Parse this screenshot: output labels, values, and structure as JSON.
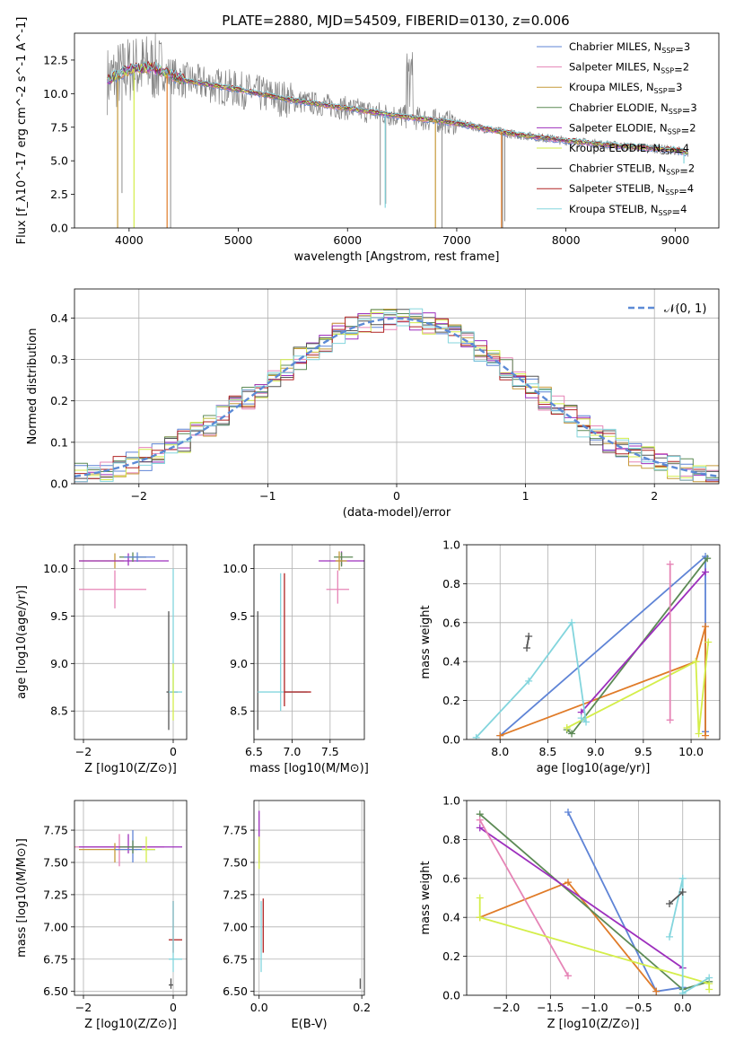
{
  "figure_title": "PLATE=2880, MJD=54509, FIBERID=0130, z=0.006",
  "colors": {
    "Chabrier MILES": "#5f84d6",
    "Salpeter MILES": "#e684b6",
    "Kroupa MILES": "#c69a3a",
    "Chabrier ELODIE": "#5c8a55",
    "Salpeter ELODIE": "#9d2fbd",
    "Kroupa ELODIE": "#d4ee4a",
    "Chabrier STELIB": "#555555",
    "Salpeter STELIB": "#b02323",
    "Kroupa STELIB": "#83d5dd",
    "data": "#808080",
    "normal_curve": "#5c8ad6",
    "orange_series": "#e07b28"
  },
  "chart_data": [
    {
      "id": "spectrum",
      "type": "line",
      "title": "PLATE=2880, MJD=54509, FIBERID=0130, z=0.006",
      "xlabel": "wavelength [Angstrom, rest frame]",
      "ylabel": "Flux [f_λ10^-17 erg cm^-2 s^-1 A^-1]",
      "xlim": [
        3500,
        9400
      ],
      "ylim": [
        0,
        14.5
      ],
      "xticks": [
        "4000",
        "5000",
        "6000",
        "7000",
        "8000",
        "9000"
      ],
      "yticks": [
        "0.0",
        "2.5",
        "5.0",
        "7.5",
        "10.0",
        "12.5"
      ],
      "legend_position": "top-right",
      "legend": [
        {
          "model": "Chabrier MILES, N",
          "nssp": "3"
        },
        {
          "model": "Salpeter MILES, N",
          "nssp": "2"
        },
        {
          "model": "Kroupa MILES, N",
          "nssp": "3"
        },
        {
          "model": "Chabrier ELODIE, N",
          "nssp": "3"
        },
        {
          "model": "Salpeter ELODIE, N",
          "nssp": "2"
        },
        {
          "model": "Kroupa ELODIE, N",
          "nssp": "4"
        },
        {
          "model": "Chabrier STELIB, N",
          "nssp": "2"
        },
        {
          "model": "Salpeter STELIB, N",
          "nssp": "4"
        },
        {
          "model": "Kroupa STELIB, N",
          "nssp": "4"
        }
      ],
      "continuum": {
        "x": [
          3800,
          4000,
          4200,
          4500,
          5000,
          5500,
          6000,
          6500,
          7000,
          7500,
          8000,
          8500,
          9000,
          9100
        ],
        "y": [
          11.0,
          11.8,
          12.0,
          11.0,
          10.3,
          9.5,
          8.9,
          8.3,
          7.8,
          7.0,
          6.5,
          6.1,
          5.8,
          5.6
        ]
      }
    },
    {
      "id": "residuals",
      "type": "line",
      "xlabel": "(data-model)/error",
      "ylabel": "Normed distribution",
      "xlim": [
        -2.5,
        2.5
      ],
      "ylim": [
        0,
        0.47
      ],
      "xticks": [
        "−2",
        "−1",
        "0",
        "1",
        "2"
      ],
      "yticks": [
        "0.0",
        "0.1",
        "0.2",
        "0.3",
        "0.4"
      ],
      "legend": "𝒩(0, 1)",
      "legend_position": "top-right",
      "grid": true
    },
    {
      "id": "age_vs_Z",
      "type": "scatter",
      "xlabel": "Z [log10(Z/Z⊙)]",
      "ylabel": "age  [log10(age/yr)]",
      "xlim": [
        -2.2,
        0.3
      ],
      "ylim": [
        8.2,
        10.25
      ],
      "xticks": [
        "−2",
        "0"
      ],
      "yticks": [
        "8.5",
        "9.0",
        "9.5",
        "10.0"
      ],
      "grid": true
    },
    {
      "id": "age_vs_mass",
      "type": "scatter",
      "xlabel": "mass [log10(M/M⊙)]",
      "xlim": [
        6.5,
        7.95
      ],
      "ylim": [
        8.2,
        10.25
      ],
      "xticks": [
        "6.5",
        "7.0",
        "7.5"
      ],
      "yticks": [
        "8.5",
        "9.0",
        "9.5",
        "10.0"
      ],
      "grid": true
    },
    {
      "id": "weight_vs_age",
      "type": "line",
      "xlabel": "age  [log10(age/yr)]",
      "ylabel": "mass weight",
      "xlim": [
        7.65,
        10.3
      ],
      "ylim": [
        0,
        1.0
      ],
      "xticks": [
        "8.0",
        "8.5",
        "9.0",
        "9.5",
        "10.0"
      ],
      "yticks": [
        "0.0",
        "0.2",
        "0.4",
        "0.6",
        "0.8",
        "1.0"
      ],
      "grid": true,
      "series": [
        {
          "color": "#5f84d6",
          "x": [
            8.0,
            10.15,
            10.15
          ],
          "y": [
            0.02,
            0.94,
            0.04
          ]
        },
        {
          "color": "#e07b28",
          "x": [
            8.0,
            10.05,
            10.15,
            10.15
          ],
          "y": [
            0.02,
            0.4,
            0.58,
            0.02
          ]
        },
        {
          "color": "#5c8a55",
          "x": [
            8.7,
            8.75,
            10.17
          ],
          "y": [
            0.05,
            0.03,
            0.93
          ]
        },
        {
          "color": "#9d2fbd",
          "x": [
            8.85,
            10.15
          ],
          "y": [
            0.14,
            0.86
          ]
        },
        {
          "color": "#d4ee4a",
          "x": [
            8.7,
            10.05,
            10.08,
            10.18
          ],
          "y": [
            0.06,
            0.4,
            0.03,
            0.5
          ]
        },
        {
          "color": "#83d5dd",
          "x": [
            7.75,
            8.3,
            8.75,
            8.9,
            8.85
          ],
          "y": [
            0.01,
            0.3,
            0.6,
            0.09,
            0.11
          ]
        },
        {
          "color": "#555555",
          "x": [
            8.28,
            8.3
          ],
          "y": [
            0.47,
            0.53
          ]
        },
        {
          "color": "#e684b6",
          "x": [
            9.78,
            9.78
          ],
          "y": [
            0.1,
            0.9
          ]
        }
      ]
    },
    {
      "id": "mass_vs_Z",
      "type": "scatter",
      "xlabel": "Z [log10(Z/Z⊙)]",
      "ylabel": "mass [log10(M/M⊙)]",
      "xlim": [
        -2.2,
        0.3
      ],
      "ylim": [
        6.47,
        7.98
      ],
      "xticks": [
        "−2",
        "0"
      ],
      "yticks": [
        "6.50",
        "6.75",
        "7.00",
        "7.25",
        "7.50",
        "7.75"
      ],
      "grid": true
    },
    {
      "id": "mass_vs_ebv",
      "type": "scatter",
      "xlabel": "E(B-V)",
      "xlim": [
        -0.01,
        0.205
      ],
      "ylim": [
        6.47,
        7.98
      ],
      "xticks": [
        "0.0",
        "0.2"
      ],
      "yticks": [
        "6.50",
        "6.75",
        "7.00",
        "7.25",
        "7.50",
        "7.75"
      ],
      "grid": true
    },
    {
      "id": "weight_vs_Z",
      "type": "line",
      "xlabel": "Z [log10(Z/Z⊙)]",
      "ylabel": "mass weight",
      "xlim": [
        -2.45,
        0.42
      ],
      "ylim": [
        0,
        1.0
      ],
      "xticks": [
        "−2.0",
        "−1.5",
        "−1.0",
        "−0.5",
        "0.0"
      ],
      "yticks": [
        "0.0",
        "0.2",
        "0.4",
        "0.6",
        "0.8",
        "1.0"
      ],
      "grid": true,
      "series": [
        {
          "color": "#5f84d6",
          "x": [
            -1.3,
            -0.3,
            0.0
          ],
          "y": [
            0.94,
            0.02,
            0.04
          ]
        },
        {
          "color": "#e07b28",
          "x": [
            -2.3,
            -1.3,
            -0.3
          ],
          "y": [
            0.4,
            0.58,
            0.02
          ]
        },
        {
          "color": "#5c8a55",
          "x": [
            -2.3,
            0.0,
            0.3
          ],
          "y": [
            0.93,
            0.03,
            0.07
          ]
        },
        {
          "color": "#9d2fbd",
          "x": [
            -2.3,
            0.0
          ],
          "y": [
            0.86,
            0.14
          ]
        },
        {
          "color": "#e684b6",
          "x": [
            -2.3,
            -1.3
          ],
          "y": [
            0.9,
            0.1
          ]
        },
        {
          "color": "#d4ee4a",
          "x": [
            -2.3,
            -2.3,
            0.3,
            0.3
          ],
          "y": [
            0.5,
            0.4,
            0.06,
            0.03
          ]
        },
        {
          "color": "#83d5dd",
          "x": [
            -0.15,
            0.0,
            0.0,
            0.3
          ],
          "y": [
            0.3,
            0.6,
            0.01,
            0.09
          ]
        },
        {
          "color": "#555555",
          "x": [
            -0.15,
            0.0
          ],
          "y": [
            0.47,
            0.53
          ]
        }
      ]
    }
  ]
}
